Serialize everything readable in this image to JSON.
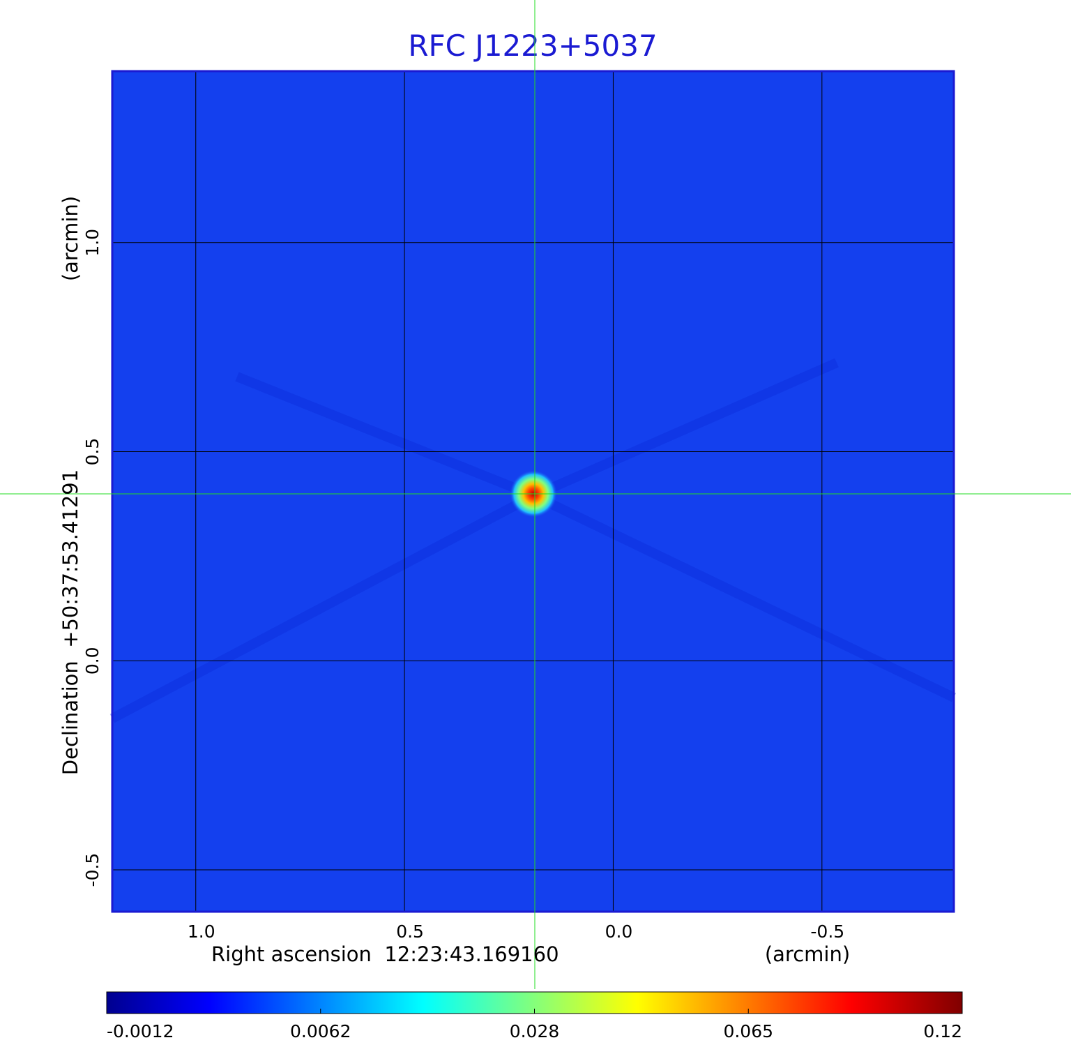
{
  "chart_data": {
    "type": "heatmap",
    "title": "RFC J1223+5037",
    "xlabel": "Right ascension  12:23:43.169160",
    "xunit": "(arcmin)",
    "ylabel": "Declination  +50:37:53.41291",
    "yunit": "(arcmin)",
    "xlim": [
      1.2,
      -0.816
    ],
    "ylim": [
      -0.6,
      1.41
    ],
    "x_ticks": [
      1.0,
      0.5,
      0.0,
      -0.5
    ],
    "x_tick_labels": [
      "1.0",
      "0.5",
      "0.0",
      "-0.5"
    ],
    "y_ticks": [
      1.0,
      0.5,
      0.0,
      -0.5
    ],
    "y_tick_labels": [
      "1.0",
      "0.5",
      "0.0",
      "-0.5"
    ],
    "grid": true,
    "source_peak": {
      "x": 0.19,
      "y": 0.395,
      "value": 0.12
    },
    "crosshair": {
      "x": 0.19,
      "y": 0.395,
      "color": "#22dd22"
    },
    "colorbar": {
      "colormap": "jet",
      "range": [
        -0.0012,
        0.12
      ],
      "tick_labels": [
        "-0.0012",
        "0.0062",
        "0.028",
        "0.065",
        "0.12"
      ],
      "stops": [
        "#00008f",
        "#0000ff",
        "#00ffff",
        "#ffff00",
        "#ff0000",
        "#800000"
      ]
    },
    "colors": {
      "background": "#1440ee",
      "frame": "#1a1ad2",
      "grid": "#000000"
    }
  }
}
